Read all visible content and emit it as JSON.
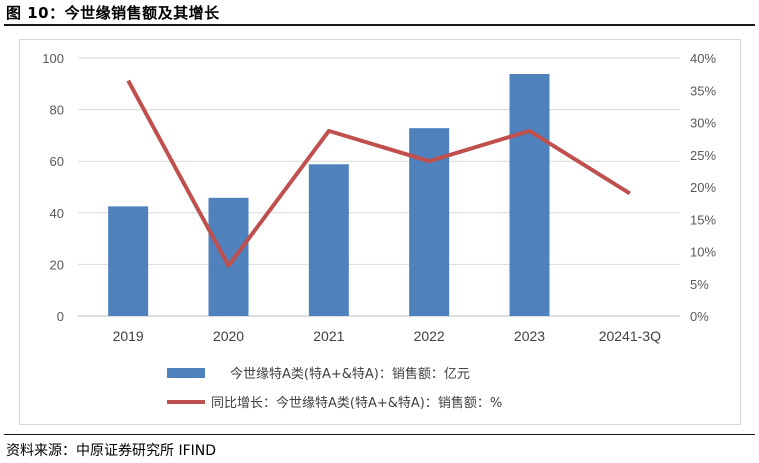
{
  "figure": {
    "title": "图 10：今世缘销售额及其增长",
    "source": "资料来源：中原证券研究所  IFIND"
  },
  "chart_data": {
    "type": "bar+line",
    "categories": [
      "2019",
      "2020",
      "2021",
      "2022",
      "2023",
      "20241-3Q"
    ],
    "series": [
      {
        "name": "今世缘特A类(特A+&特A)：销售额：亿元",
        "type": "bar",
        "axis": "left",
        "color": "#4f81bd",
        "values": [
          42.5,
          45.8,
          58.8,
          72.8,
          93.8,
          null
        ]
      },
      {
        "name": "同比增长：今世缘特A类(特A+&特A)：销售额：%",
        "type": "line",
        "axis": "right",
        "color": "#c0504d",
        "values": [
          36.5,
          7.8,
          28.7,
          24.0,
          28.7,
          19.0
        ]
      }
    ],
    "left_axis": {
      "ylim": [
        0,
        100
      ],
      "ticks": [
        "0",
        "20",
        "40",
        "60",
        "80",
        "100"
      ]
    },
    "right_axis": {
      "ylim": [
        0,
        40
      ],
      "ticks": [
        "0%",
        "5%",
        "10%",
        "15%",
        "20%",
        "25%",
        "30%",
        "35%",
        "40%"
      ]
    },
    "grid": true,
    "legend_position": "bottom"
  }
}
